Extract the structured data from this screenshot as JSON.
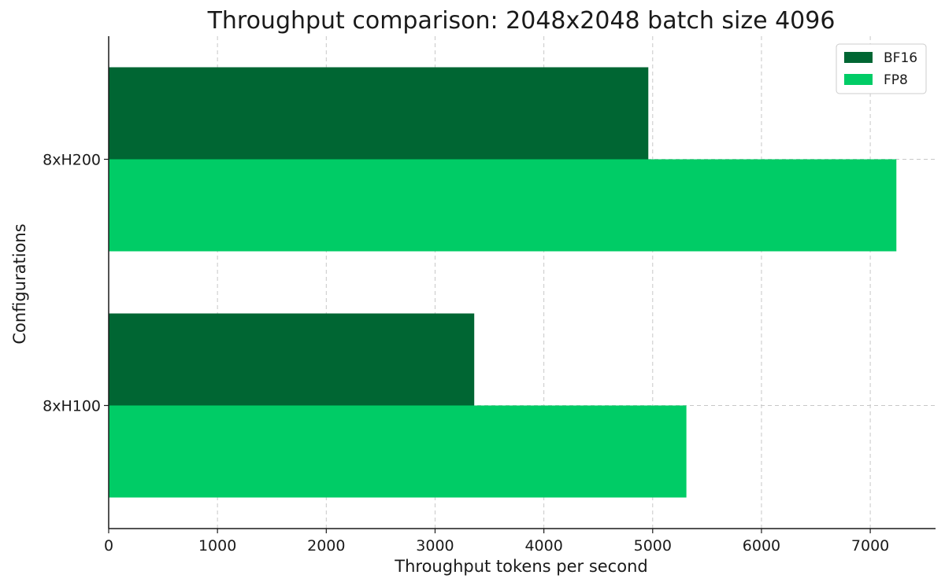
{
  "chart_data": {
    "type": "bar",
    "orientation": "horizontal",
    "title": "Throughput comparison: 2048x2048 batch size 4096",
    "xlabel": "Throughput tokens per second",
    "ylabel": "Configurations",
    "categories": [
      "8xH100",
      "8xH200"
    ],
    "series": [
      {
        "name": "BF16",
        "color": "#006633",
        "values": [
          3360,
          4960
        ]
      },
      {
        "name": "FP8",
        "color": "#00cc66",
        "values": [
          5310,
          7240
        ]
      }
    ],
    "xlim": [
      0,
      7600
    ],
    "xticks": [
      0,
      1000,
      2000,
      3000,
      4000,
      5000,
      6000,
      7000
    ],
    "grid": true,
    "legend_position": "top-right"
  }
}
